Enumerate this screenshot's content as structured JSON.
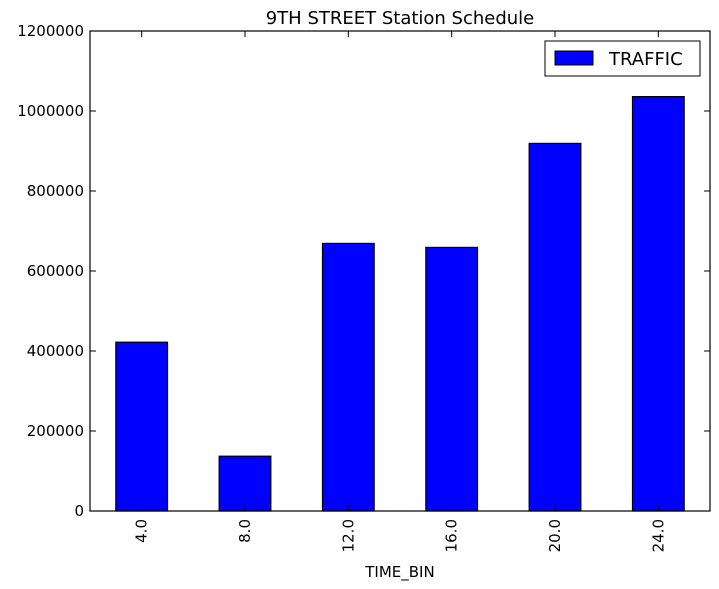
{
  "chart_data": {
    "type": "bar",
    "title": "9TH STREET Station Schedule",
    "xlabel": "TIME_BIN",
    "ylabel": "",
    "categories": [
      "4.0",
      "8.0",
      "12.0",
      "16.0",
      "20.0",
      "24.0"
    ],
    "series": [
      {
        "name": "TRAFFIC",
        "color": "#0000ff",
        "values": [
          422000,
          137000,
          669000,
          659000,
          919000,
          1036000
        ]
      }
    ],
    "ylim": [
      0,
      1200000
    ],
    "yticks": [
      "0",
      "200000",
      "400000",
      "600000",
      "800000",
      "1000000",
      "1200000"
    ],
    "grid": false,
    "legend_position": "top-right"
  }
}
